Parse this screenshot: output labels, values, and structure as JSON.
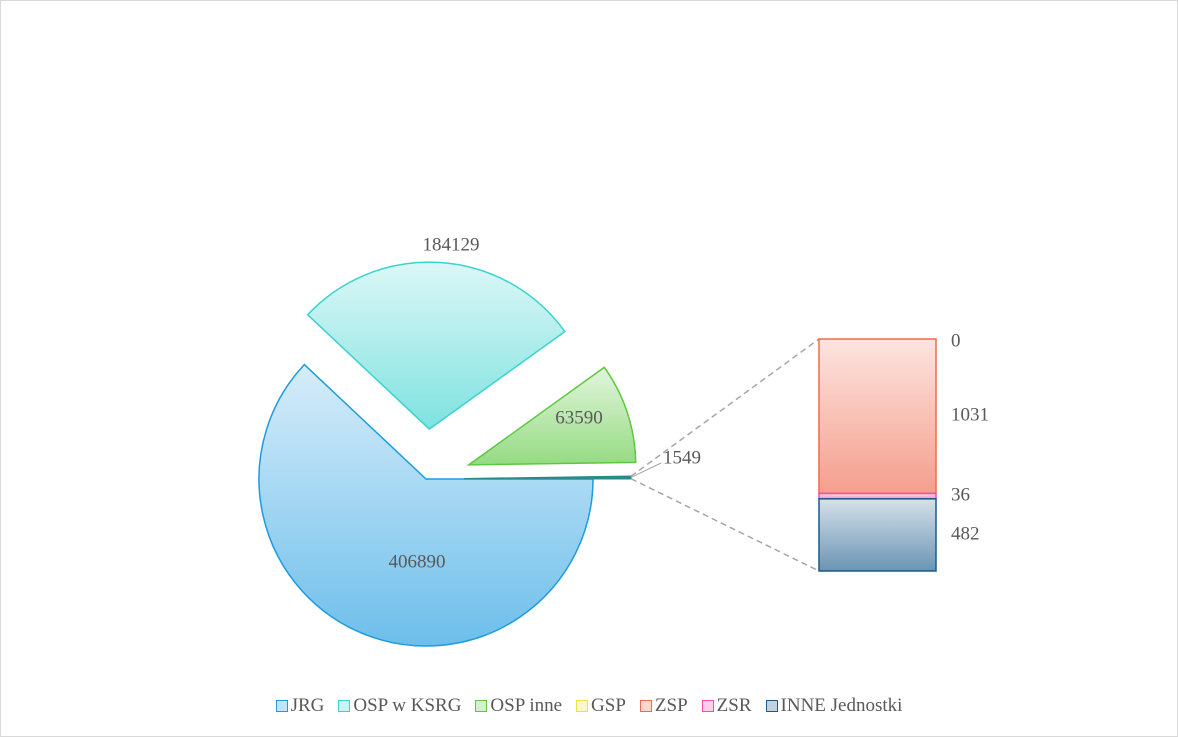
{
  "chart_data": {
    "type": "bar_of_pie",
    "categories": [
      "JRG",
      "OSP w KSRG",
      "OSP inne",
      "GSP",
      "ZSP",
      "ZSR",
      "INNE Jednostki"
    ],
    "values": [
      406890,
      184129,
      63590,
      0,
      1031,
      36,
      482
    ],
    "colors": [
      "#1e9be0",
      "#3ad3cf",
      "#5cc840",
      "#f0e040",
      "#f06a50",
      "#f050a8",
      "#1a5a8a"
    ],
    "other_value": 1549,
    "secondary_count": 4,
    "legend": "bottom"
  }
}
